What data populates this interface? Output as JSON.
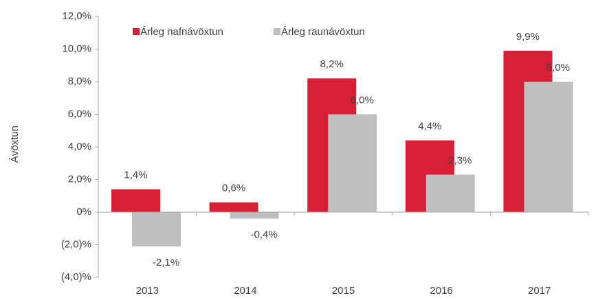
{
  "chart_data": {
    "type": "bar",
    "y_axis_label": "Ávöxtun",
    "categories": [
      "2013",
      "2014",
      "2015",
      "2016",
      "2017"
    ],
    "series": [
      {
        "name": "Árleg nafnávöxtun",
        "color": "#d71f35",
        "values": [
          1.4,
          0.6,
          8.2,
          4.4,
          9.9
        ],
        "value_labels": [
          "1,4%",
          "0,6%",
          "8,2%",
          "4,4%",
          "9,9%"
        ]
      },
      {
        "name": "Árleg raunávöxtun",
        "color": "#bfbfbf",
        "values": [
          -2.1,
          -0.4,
          6.0,
          2.3,
          8.0
        ],
        "value_labels": [
          "-2,1%",
          "-0,4%",
          "6,0%",
          "2,3%",
          "8,0%"
        ]
      }
    ],
    "ylim": [
      -4,
      12
    ],
    "yticks": [
      {
        "value": -4,
        "label": "(4,0)%"
      },
      {
        "value": -2,
        "label": "(2,0)%"
      },
      {
        "value": 0,
        "label": "0%"
      },
      {
        "value": 2,
        "label": "2,0%"
      },
      {
        "value": 4,
        "label": "4,0%"
      },
      {
        "value": 6,
        "label": "6,0%"
      },
      {
        "value": 8,
        "label": "8,0%"
      },
      {
        "value": 10,
        "label": "10,0%"
      },
      {
        "value": 12,
        "label": "12,0%"
      }
    ],
    "legend": "top-left"
  }
}
